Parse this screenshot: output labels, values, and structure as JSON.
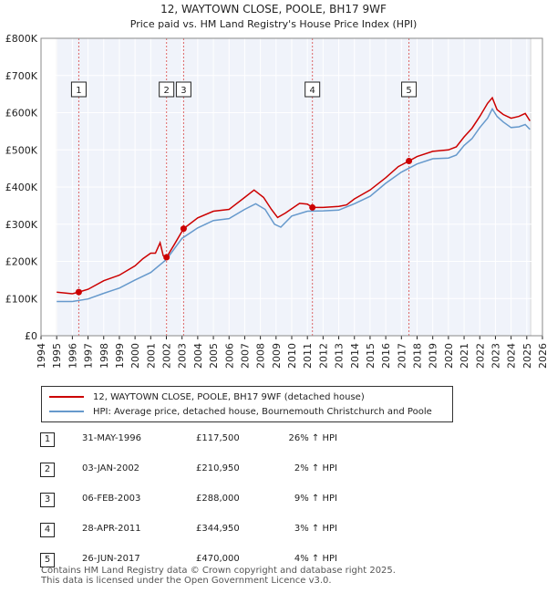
{
  "chart_data": {
    "type": "line",
    "title": "12, WAYTOWN CLOSE, POOLE, BH17 9WF",
    "subtitle": "Price paid vs. HM Land Registry's House Price Index (HPI)",
    "xlim": [
      1994,
      2026
    ],
    "ylim": [
      0,
      800000
    ],
    "x_ticks": [
      1994,
      1995,
      1996,
      1997,
      1998,
      1999,
      2000,
      2001,
      2002,
      2003,
      2004,
      2005,
      2006,
      2007,
      2008,
      2009,
      2010,
      2011,
      2012,
      2013,
      2014,
      2015,
      2016,
      2017,
      2018,
      2019,
      2020,
      2021,
      2022,
      2023,
      2024,
      2025,
      2026
    ],
    "y_ticks": [
      0,
      100000,
      200000,
      300000,
      400000,
      500000,
      600000,
      700000,
      800000
    ],
    "y_tick_labels": [
      "£0",
      "£100K",
      "£200K",
      "£300K",
      "£400K",
      "£500K",
      "£600K",
      "£700K",
      "£800K"
    ],
    "data_start_year": 1995,
    "data_end_year": 2025.25,
    "series": [
      {
        "name": "12, WAYTOWN CLOSE, POOLE, BH17 9WF (detached house)",
        "color": "#cc0000",
        "points": [
          [
            1995,
            117000
          ],
          [
            1996,
            113000
          ],
          [
            1996.41,
            117500
          ],
          [
            1997,
            125000
          ],
          [
            1998,
            148000
          ],
          [
            1999,
            163000
          ],
          [
            2000,
            188000
          ],
          [
            2000.5,
            207000
          ],
          [
            2001,
            222000
          ],
          [
            2001.3,
            222000
          ],
          [
            2001.6,
            250000
          ],
          [
            2001.8,
            215000
          ],
          [
            2002.01,
            210950
          ],
          [
            2002.5,
            245000
          ],
          [
            2003.1,
            288000
          ],
          [
            2004,
            317000
          ],
          [
            2005,
            335000
          ],
          [
            2006,
            340000
          ],
          [
            2007,
            372000
          ],
          [
            2007.6,
            392000
          ],
          [
            2008.2,
            372000
          ],
          [
            2008.7,
            340000
          ],
          [
            2009.1,
            318000
          ],
          [
            2009.6,
            330000
          ],
          [
            2010.5,
            356000
          ],
          [
            2011.0,
            354000
          ],
          [
            2011.32,
            344950
          ],
          [
            2012,
            345000
          ],
          [
            2013,
            348000
          ],
          [
            2013.5,
            352000
          ],
          [
            2014,
            368000
          ],
          [
            2015,
            392000
          ],
          [
            2016,
            425000
          ],
          [
            2016.8,
            455000
          ],
          [
            2017.48,
            470000
          ],
          [
            2018,
            482000
          ],
          [
            2019,
            496000
          ],
          [
            2020,
            500000
          ],
          [
            2020.5,
            508000
          ],
          [
            2021,
            535000
          ],
          [
            2021.5,
            558000
          ],
          [
            2022,
            590000
          ],
          [
            2022.5,
            625000
          ],
          [
            2022.8,
            640000
          ],
          [
            2023.1,
            608000
          ],
          [
            2023.5,
            595000
          ],
          [
            2024,
            585000
          ],
          [
            2024.5,
            590000
          ],
          [
            2024.9,
            598000
          ],
          [
            2025.2,
            578000
          ]
        ]
      },
      {
        "name": "HPI: Average price, detached house, Bournemouth Christchurch and Poole",
        "color": "#6699cc",
        "points": [
          [
            1995,
            92000
          ],
          [
            1996,
            92000
          ],
          [
            1997,
            99000
          ],
          [
            1998,
            114000
          ],
          [
            1999,
            128000
          ],
          [
            2000,
            150000
          ],
          [
            2001,
            170000
          ],
          [
            2002,
            205000
          ],
          [
            2003,
            262000
          ],
          [
            2004,
            290000
          ],
          [
            2005,
            310000
          ],
          [
            2006,
            315000
          ],
          [
            2007,
            340000
          ],
          [
            2007.7,
            355000
          ],
          [
            2008.3,
            340000
          ],
          [
            2008.9,
            300000
          ],
          [
            2009.3,
            292000
          ],
          [
            2010,
            322000
          ],
          [
            2011,
            335000
          ],
          [
            2012,
            336000
          ],
          [
            2013,
            338000
          ],
          [
            2014,
            355000
          ],
          [
            2015,
            375000
          ],
          [
            2016,
            410000
          ],
          [
            2017,
            440000
          ],
          [
            2018,
            462000
          ],
          [
            2019,
            476000
          ],
          [
            2020,
            478000
          ],
          [
            2020.5,
            486000
          ],
          [
            2021,
            512000
          ],
          [
            2021.5,
            530000
          ],
          [
            2022,
            560000
          ],
          [
            2022.5,
            585000
          ],
          [
            2022.8,
            610000
          ],
          [
            2023.1,
            590000
          ],
          [
            2023.5,
            575000
          ],
          [
            2024,
            560000
          ],
          [
            2024.5,
            562000
          ],
          [
            2024.9,
            568000
          ],
          [
            2025.2,
            555000
          ]
        ]
      }
    ],
    "sales": [
      {
        "label": "1",
        "x": 1996.41,
        "price": 117500,
        "date": "31-MAY-1996",
        "price_text": "£117,500",
        "hpi_text": "26% ↑ HPI"
      },
      {
        "label": "2",
        "x": 2002.01,
        "price": 210950,
        "date": "03-JAN-2002",
        "price_text": "£210,950",
        "hpi_text": "2% ↑ HPI"
      },
      {
        "label": "3",
        "x": 2003.1,
        "price": 288000,
        "date": "06-FEB-2003",
        "price_text": "£288,000",
        "hpi_text": "9% ↑ HPI"
      },
      {
        "label": "4",
        "x": 2011.32,
        "price": 344950,
        "date": "28-APR-2011",
        "price_text": "£344,950",
        "hpi_text": "3% ↑ HPI"
      },
      {
        "label": "5",
        "x": 2017.48,
        "price": 470000,
        "date": "26-JUN-2017",
        "price_text": "£470,000",
        "hpi_text": "4% ↑ HPI"
      }
    ],
    "legend": [
      {
        "label": "12, WAYTOWN CLOSE, POOLE, BH17 9WF (detached house)",
        "color": "#cc0000"
      },
      {
        "label": "HPI: Average price, detached house, Bournemouth Christchurch and Poole",
        "color": "#6699cc"
      }
    ]
  },
  "footer": {
    "line1": "Contains HM Land Registry data © Crown copyright and database right 2025.",
    "line2": "This data is licensed under the Open Government Licence v3.0."
  }
}
